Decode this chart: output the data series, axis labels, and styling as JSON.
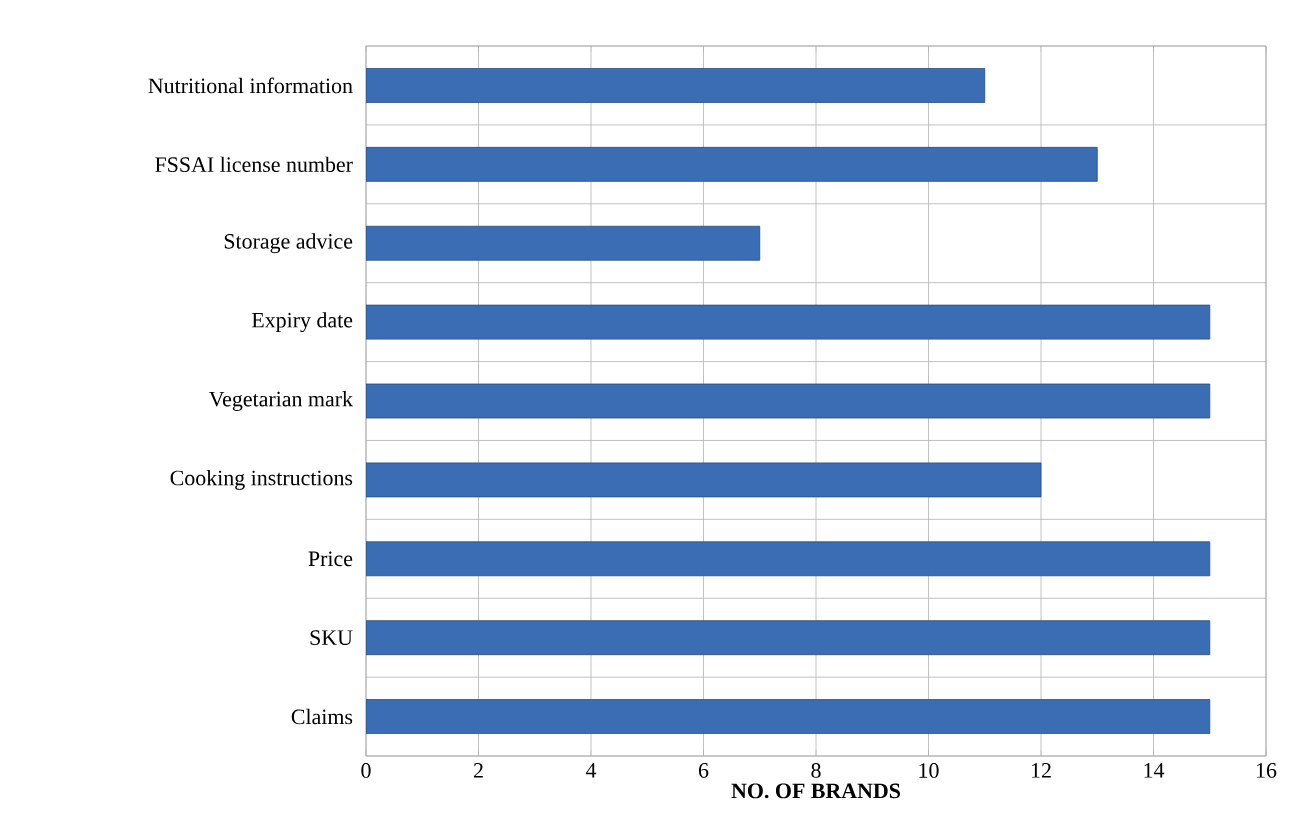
{
  "chart_data": {
    "type": "bar",
    "orientation": "horizontal",
    "xlabel": "NO. OF BRANDS",
    "categories": [
      "Nutritional information",
      "FSSAI license number",
      "Storage advice",
      "Expiry date",
      "Vegetarian mark",
      "Cooking instructions",
      "Price",
      "SKU",
      "Claims"
    ],
    "values": [
      11,
      13,
      7,
      15,
      15,
      12,
      15,
      15,
      15
    ],
    "color": "#3a6db4",
    "xlim": [
      0,
      16
    ],
    "xticks": [
      0,
      2,
      4,
      6,
      8,
      10,
      12,
      14,
      16
    ],
    "grid": true
  }
}
